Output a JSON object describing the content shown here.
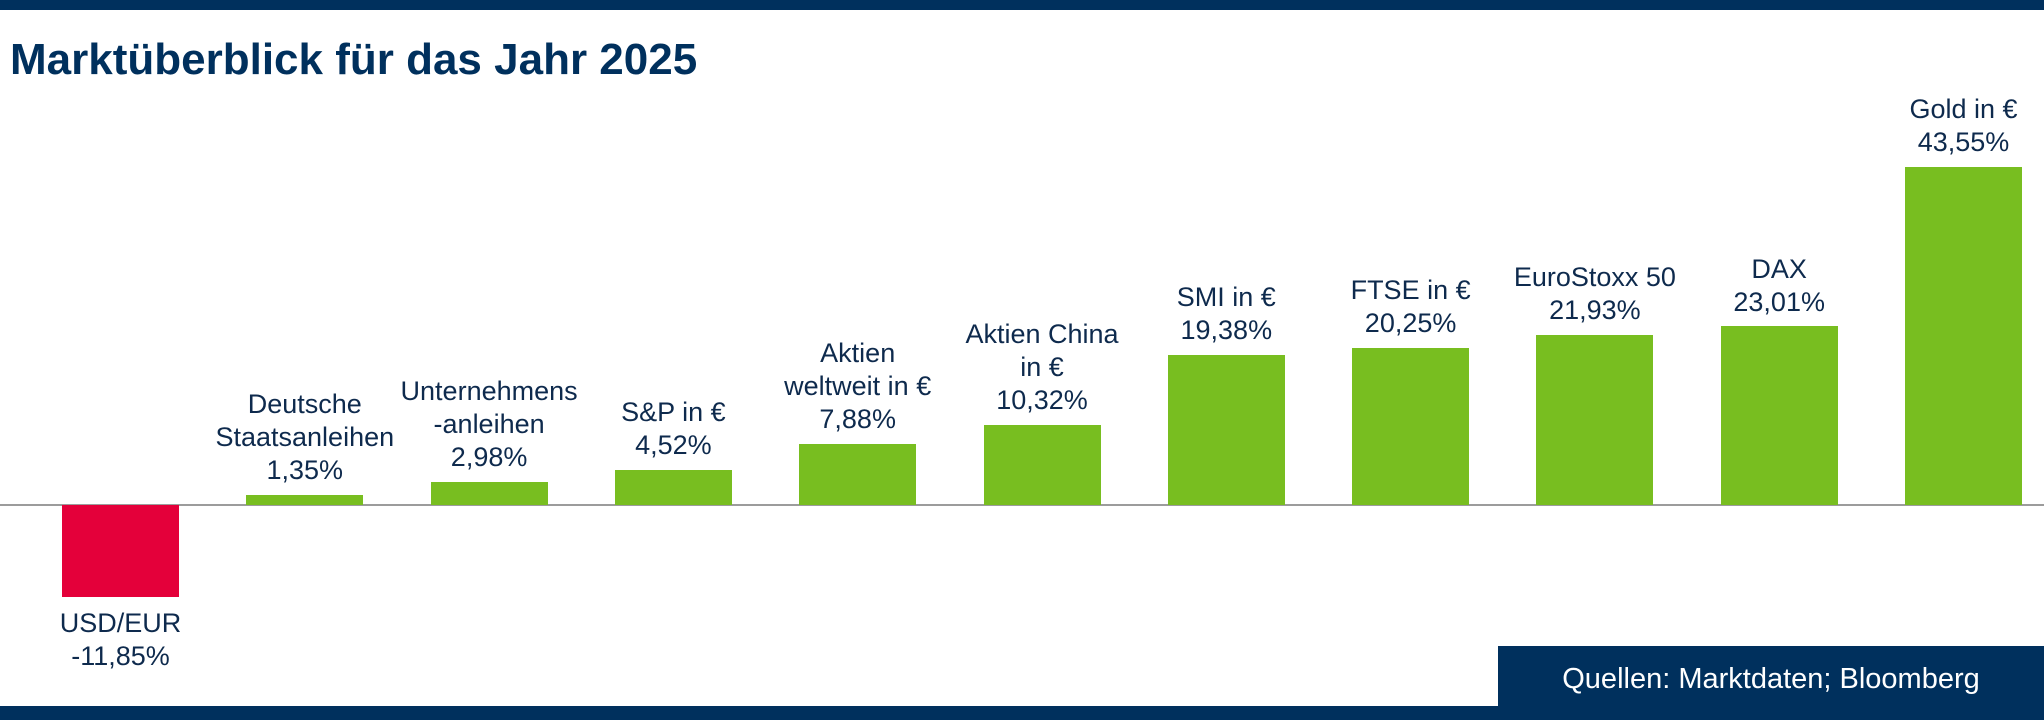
{
  "chart_data": {
    "type": "bar",
    "title": "Marktüberblick für das Jahr 2025",
    "categories": [
      "USD/EUR",
      "Deutsche\nStaatsanleihen",
      "Unternehmens\n-anleihen",
      "S&P in €",
      "Aktien\nweltweit in €",
      "Aktien China\nin €",
      "SMI in €",
      "FTSE in €",
      "EuroStoxx 50",
      "DAX",
      "Gold in €"
    ],
    "values": [
      -11.85,
      1.35,
      2.98,
      4.52,
      7.88,
      10.32,
      19.38,
      20.25,
      21.93,
      23.01,
      43.55
    ],
    "value_labels": [
      "-11,85%",
      "1,35%",
      "2,98%",
      "4,52%",
      "7,88%",
      "10,32%",
      "19,38%",
      "20,25%",
      "21,93%",
      "23,01%",
      "43,55%"
    ],
    "unit": "%",
    "ylim": [
      -15,
      45
    ],
    "grid": false,
    "axis": "zero-baseline only, no ticks or y-axis",
    "legend": "none",
    "label_position": "above bars (below bar for negative value)",
    "source": "Quellen: Marktdaten; Bloomberg",
    "colors": {
      "positive": "#78BE20",
      "negative": "#E4003A",
      "navy": "#00305D",
      "axis_line": "#9C9C9C",
      "label_text": "#0E2A4D"
    }
  }
}
